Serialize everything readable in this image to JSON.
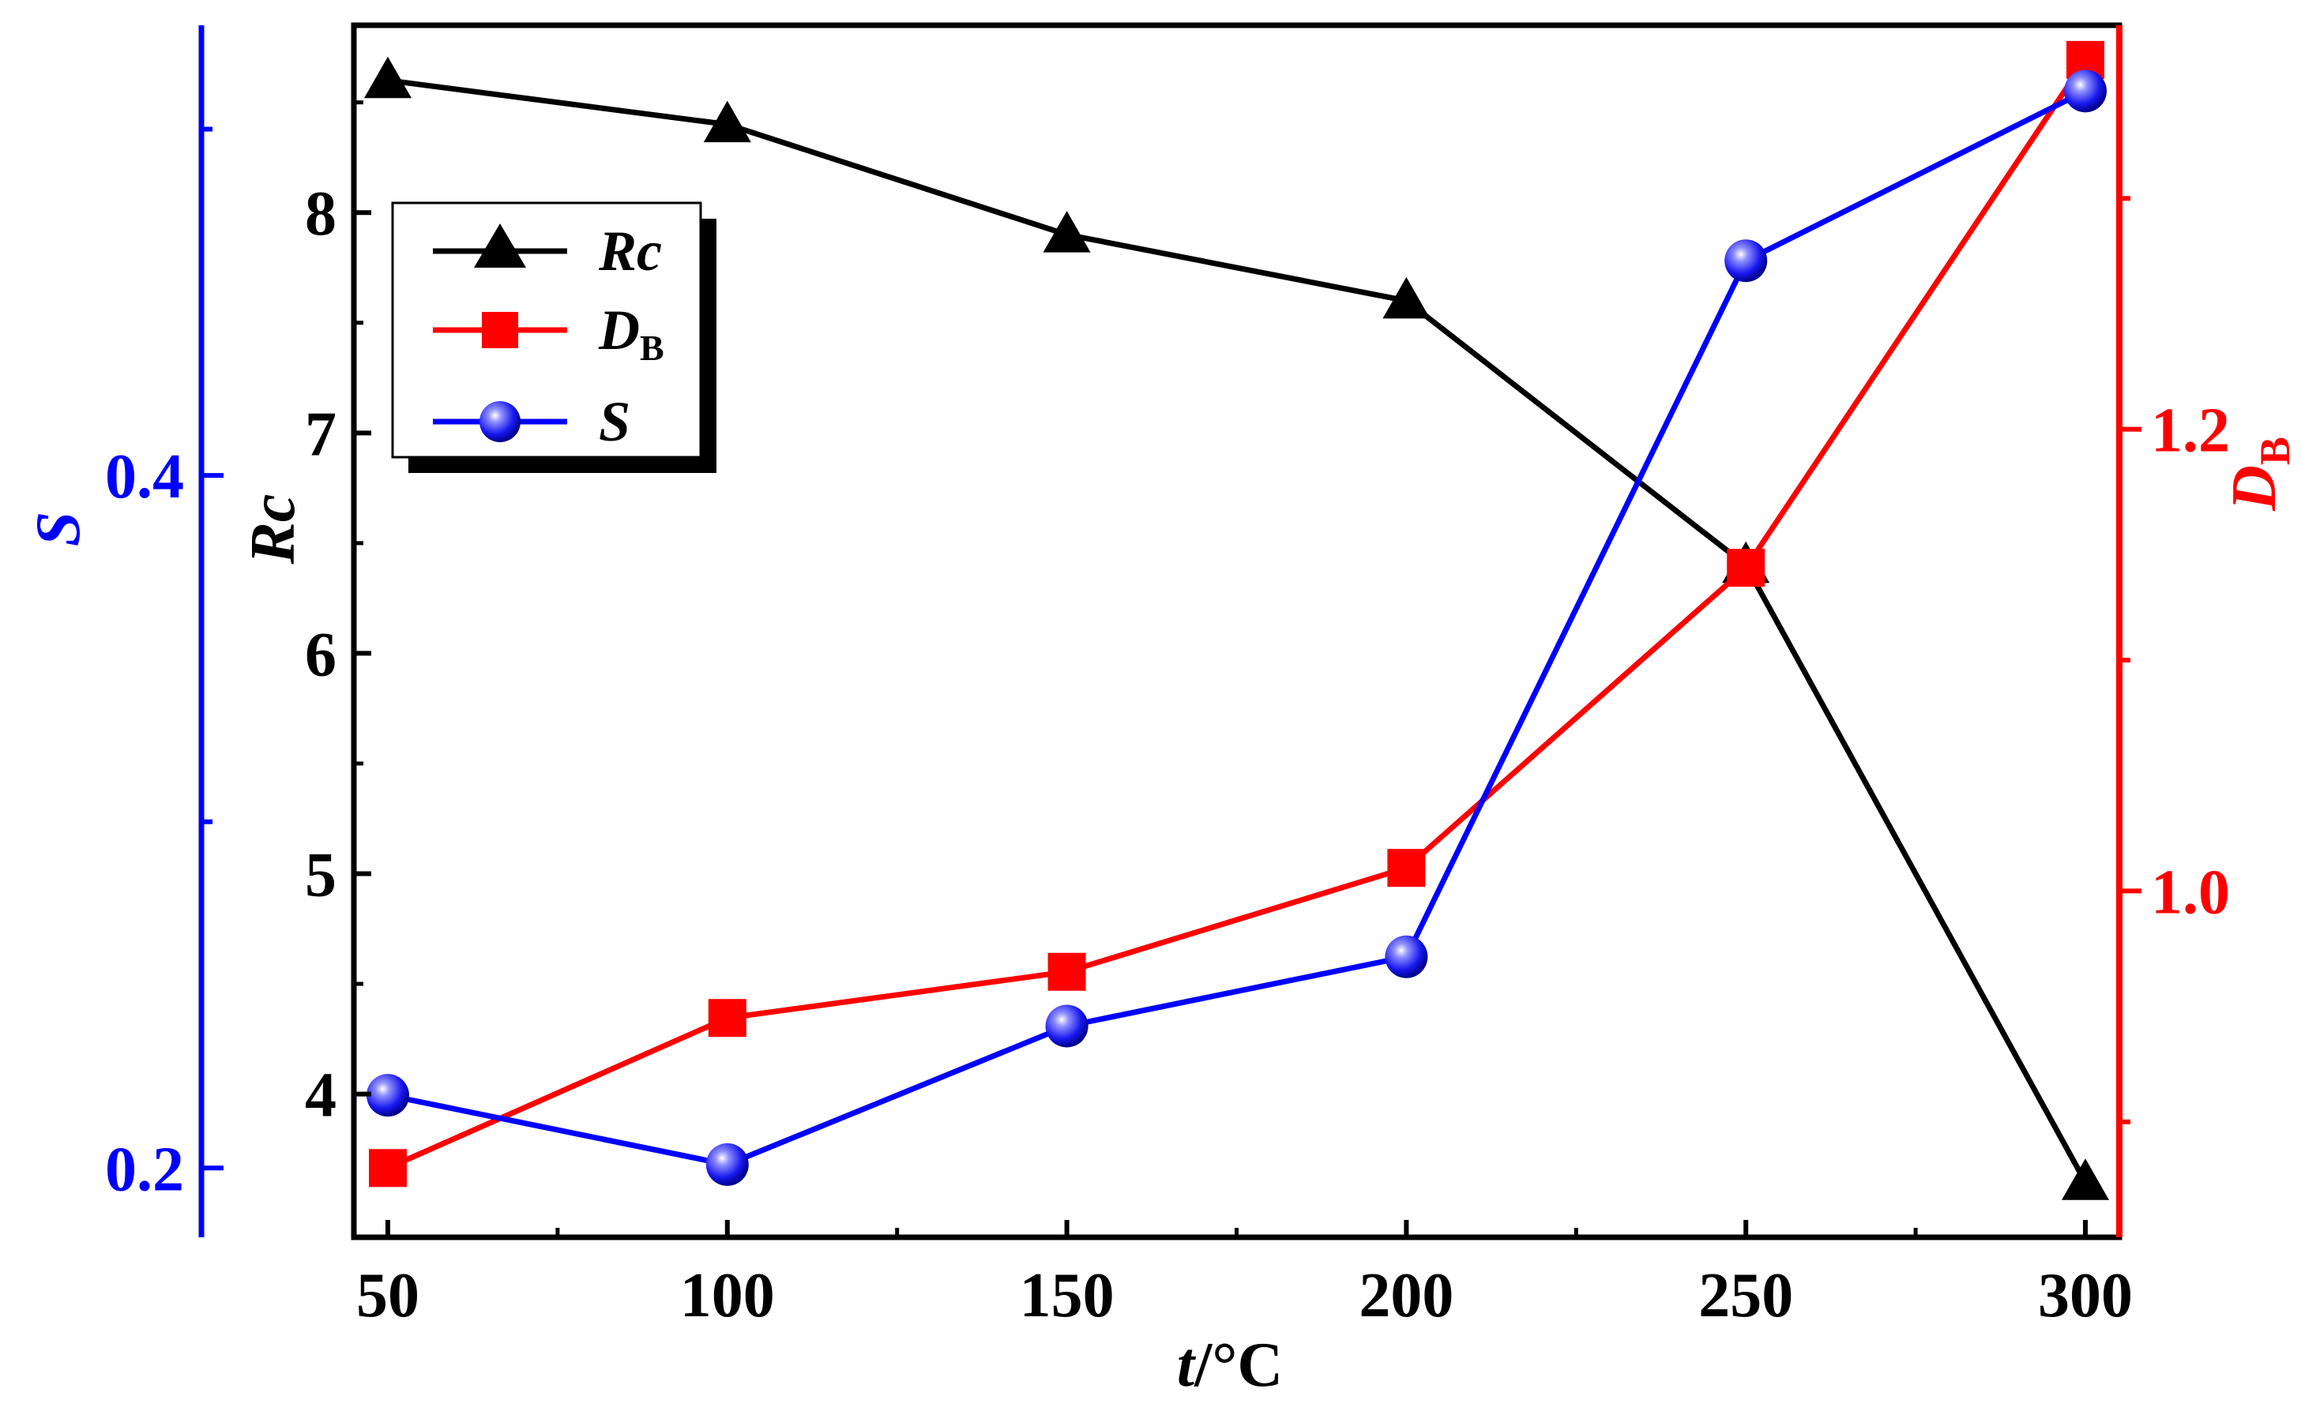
{
  "chart_data": {
    "type": "line",
    "x": [
      50,
      100,
      150,
      200,
      250,
      300
    ],
    "xlabel": {
      "italic": "t",
      "rest": "/°C"
    },
    "xlim": [
      45,
      305
    ],
    "x_ticks": [
      "50",
      "100",
      "150",
      "200",
      "250",
      "300"
    ],
    "axes": {
      "rc": {
        "label": "Rc",
        "ylim": [
          3.35,
          8.85
        ],
        "ticks": [
          "4",
          "5",
          "6",
          "7",
          "8"
        ],
        "color": "#000000"
      },
      "db": {
        "label_main": "D",
        "label_sub": "B",
        "ylim": [
          0.85,
          1.375
        ],
        "ticks": [
          "1.0",
          "1.2"
        ],
        "color": "#ff0000"
      },
      "s": {
        "label": "S",
        "ylim": [
          0.18,
          0.53
        ],
        "ticks": [
          "0.2",
          "0.4"
        ],
        "color": "#0000ff"
      }
    },
    "series": [
      {
        "name": "Rc",
        "axis": "rc",
        "marker": "triangle",
        "color": "#000000",
        "values": [
          8.6,
          8.4,
          7.9,
          7.6,
          6.4,
          3.6
        ]
      },
      {
        "name": "DB",
        "axis": "db",
        "marker": "square",
        "color": "#ff0000",
        "values": [
          0.88,
          0.945,
          0.965,
          1.01,
          1.14,
          1.36
        ]
      },
      {
        "name": "S",
        "axis": "s",
        "marker": "sphere",
        "color": "#0000ff",
        "values": [
          0.221,
          0.201,
          0.241,
          0.261,
          0.462,
          0.511
        ]
      }
    ],
    "legend": {
      "position": "top-left",
      "entries": [
        {
          "series": "Rc",
          "label": "Rc"
        },
        {
          "series": "DB",
          "label_main": "D",
          "label_sub": "B"
        },
        {
          "series": "S",
          "label": "S"
        }
      ]
    }
  }
}
